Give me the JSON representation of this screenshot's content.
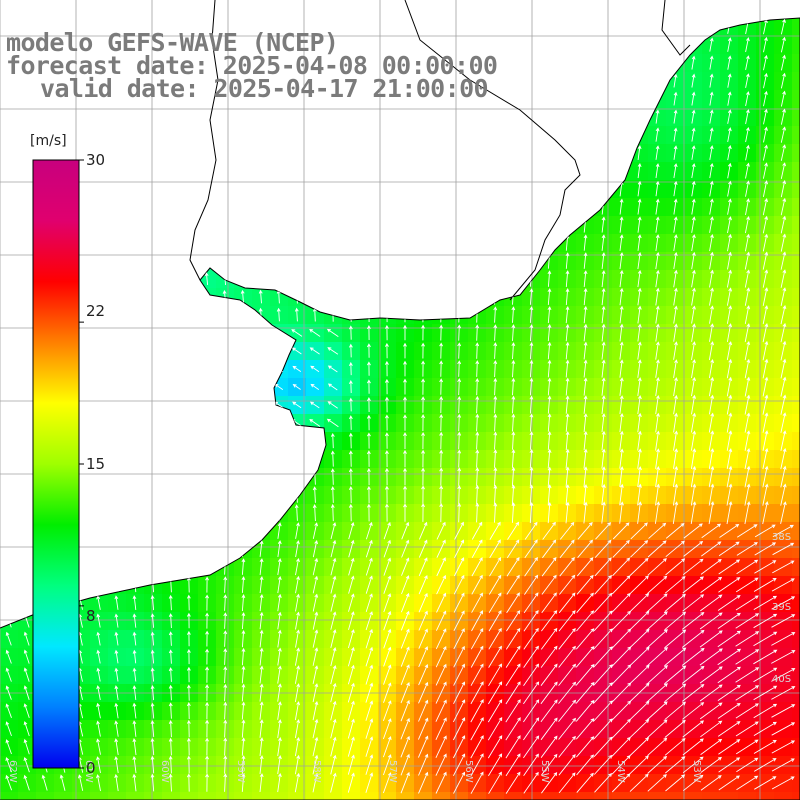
{
  "title": {
    "line1": "modelo GEFS-WAVE (NCEP)",
    "line2": "forecast date: 2025-04-08 00:00:00",
    "line3": "valid date: 2025-04-17 21:00:00"
  },
  "colorbar": {
    "unit": "[m/s]",
    "min": 0,
    "max": 30,
    "ticks": [
      "30",
      "22",
      "15",
      "8",
      "0"
    ],
    "tick_values": [
      30,
      22,
      15,
      8,
      0
    ],
    "colors": [
      "#0000ee",
      "#0080ff",
      "#00e8ff",
      "#00ff7f",
      "#00ee00",
      "#9fff00",
      "#ffff00",
      "#ff8000",
      "#ff0000",
      "#e0006e",
      "#c8007e"
    ]
  },
  "map": {
    "region": "south-atlantic-la-plata",
    "land_color": "#ffffff",
    "grid_color": "#a0a0a0",
    "coast_color": "#000000",
    "arrow_color": "#ffffff",
    "lat_labels": [
      "38S",
      "39S",
      "40S"
    ],
    "lon_labels": [
      "62W",
      "61W",
      "60W",
      "59W",
      "58W",
      "57W",
      "56W",
      "55W",
      "54W",
      "53W"
    ]
  }
}
